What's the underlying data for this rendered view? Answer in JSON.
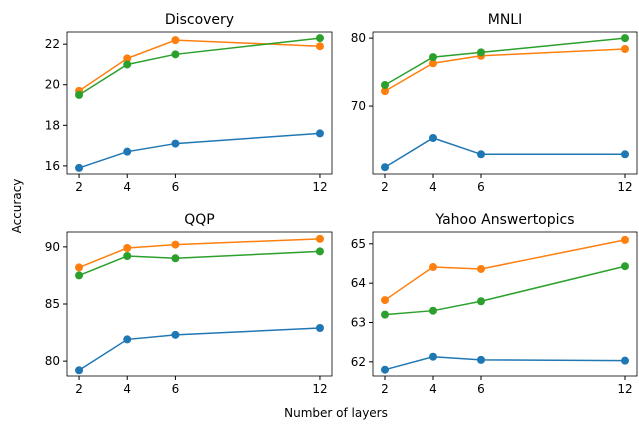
{
  "xlabel": "Number of layers",
  "ylabel": "Accuracy",
  "chart_data": [
    {
      "type": "line",
      "title": "Discovery",
      "x": [
        2,
        4,
        6,
        12
      ],
      "xlim": [
        1.5,
        12.5
      ],
      "xticks": [
        2,
        4,
        6,
        12
      ],
      "ylim": [
        15.6,
        22.6
      ],
      "yticks": [
        16,
        18,
        20,
        22
      ],
      "series": [
        {
          "color": "#1f77b4",
          "values": [
            15.9,
            16.7,
            17.1,
            17.6
          ]
        },
        {
          "color": "#ff7f0e",
          "values": [
            19.7,
            21.3,
            22.2,
            21.9
          ]
        },
        {
          "color": "#2ca02c",
          "values": [
            19.5,
            21.0,
            21.5,
            22.3
          ]
        }
      ]
    },
    {
      "type": "line",
      "title": "MNLI",
      "x": [
        2,
        4,
        6,
        12
      ],
      "xlim": [
        1.5,
        12.5
      ],
      "xticks": [
        2,
        4,
        6,
        12
      ],
      "ylim": [
        60.0,
        80.9
      ],
      "yticks": [
        70,
        80
      ],
      "series": [
        {
          "color": "#1f77b4",
          "values": [
            61.0,
            65.3,
            62.9,
            62.9
          ]
        },
        {
          "color": "#ff7f0e",
          "values": [
            72.2,
            76.3,
            77.4,
            78.4
          ]
        },
        {
          "color": "#2ca02c",
          "values": [
            73.1,
            77.2,
            77.9,
            80.0
          ]
        }
      ]
    },
    {
      "type": "line",
      "title": "QQP",
      "x": [
        2,
        4,
        6,
        12
      ],
      "xlim": [
        1.5,
        12.5
      ],
      "xticks": [
        2,
        4,
        6,
        12
      ],
      "ylim": [
        78.7,
        91.3
      ],
      "yticks": [
        80,
        85,
        90
      ],
      "series": [
        {
          "color": "#1f77b4",
          "values": [
            79.2,
            81.9,
            82.3,
            82.9
          ]
        },
        {
          "color": "#ff7f0e",
          "values": [
            88.2,
            89.9,
            90.2,
            90.7
          ]
        },
        {
          "color": "#2ca02c",
          "values": [
            87.5,
            89.2,
            89.0,
            89.6
          ]
        }
      ]
    },
    {
      "type": "line",
      "title": "Yahoo Answertopics",
      "x": [
        2,
        4,
        6,
        12
      ],
      "xlim": [
        1.5,
        12.5
      ],
      "xticks": [
        2,
        4,
        6,
        12
      ],
      "ylim": [
        61.64,
        65.3
      ],
      "yticks": [
        62,
        63,
        64,
        65
      ],
      "series": [
        {
          "color": "#1f77b4",
          "values": [
            61.8,
            62.13,
            62.05,
            62.03
          ]
        },
        {
          "color": "#ff7f0e",
          "values": [
            63.57,
            64.41,
            64.36,
            65.1
          ]
        },
        {
          "color": "#2ca02c",
          "values": [
            63.2,
            63.3,
            63.54,
            64.43
          ]
        }
      ]
    }
  ]
}
